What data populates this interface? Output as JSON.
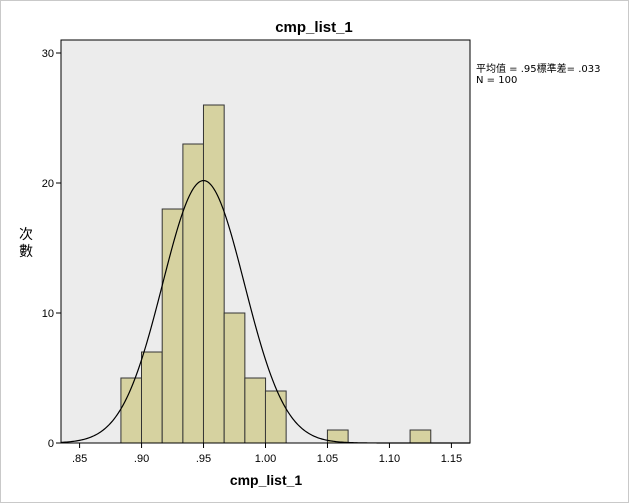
{
  "chart_data": {
    "type": "bar",
    "title": "cmp_list_1",
    "xlabel": "cmp_list_1",
    "ylabel": "次數",
    "xlim": [
      0.835,
      1.165
    ],
    "ylim": [
      0,
      31
    ],
    "x_ticks": [
      ".85",
      ".90",
      ".95",
      "1.00",
      "1.05",
      "1.10",
      "1.15"
    ],
    "x_tick_values": [
      0.85,
      0.9,
      0.95,
      1.0,
      1.05,
      1.1,
      1.15
    ],
    "y_ticks": [
      "0",
      "10",
      "20",
      "30"
    ],
    "y_tick_values": [
      0,
      10,
      20,
      30
    ],
    "bin_width": 0.0167,
    "bins": [
      {
        "center": 0.8917,
        "count": 5
      },
      {
        "center": 0.9083,
        "count": 7
      },
      {
        "center": 0.925,
        "count": 18
      },
      {
        "center": 0.9417,
        "count": 23
      },
      {
        "center": 0.9583,
        "count": 26
      },
      {
        "center": 0.975,
        "count": 10
      },
      {
        "center": 0.9917,
        "count": 5
      },
      {
        "center": 1.0083,
        "count": 4
      },
      {
        "center": 1.0583,
        "count": 1
      },
      {
        "center": 1.125,
        "count": 1
      }
    ],
    "normal_curve": {
      "mean": 0.95,
      "sd": 0.033,
      "n": 100
    },
    "grid": false,
    "plot_background": "#ececec",
    "bar_fill": "#d6d2a0",
    "bar_stroke": "#333333"
  },
  "stats": {
    "line1": "平均值 = .95標準差= .033",
    "line2": "N = 100"
  }
}
